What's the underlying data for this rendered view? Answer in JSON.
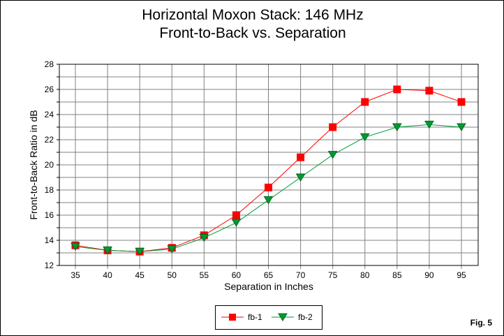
{
  "chart_data": {
    "type": "line",
    "title": "Horizontal Moxon Stack: 146 MHz",
    "subtitle": "Front-to-Back vs. Separation",
    "xlabel": "Separation in Inches",
    "ylabel": "Front-to-Back Ratio in dB",
    "x": [
      35,
      40,
      45,
      50,
      55,
      60,
      65,
      70,
      75,
      80,
      85,
      90,
      95
    ],
    "xlim": [
      33,
      98
    ],
    "ylim": [
      12,
      28
    ],
    "yticks": [
      12,
      14,
      16,
      18,
      20,
      22,
      24,
      26,
      28
    ],
    "grid": true,
    "legend": "bottom-center",
    "series": [
      {
        "name": "fb-1",
        "color": "#ff0000",
        "marker": "square",
        "values": [
          13.6,
          13.2,
          13.1,
          13.4,
          14.4,
          16.0,
          18.2,
          20.6,
          23.0,
          25.0,
          26.0,
          25.9,
          25.0
        ]
      },
      {
        "name": "fb-2",
        "color": "#009933",
        "marker": "triangle-down",
        "values": [
          13.5,
          13.2,
          13.1,
          13.3,
          14.2,
          15.4,
          17.2,
          19.0,
          20.8,
          22.2,
          23.0,
          23.2,
          23.0
        ]
      }
    ]
  },
  "figure_label": "Fig. 5"
}
